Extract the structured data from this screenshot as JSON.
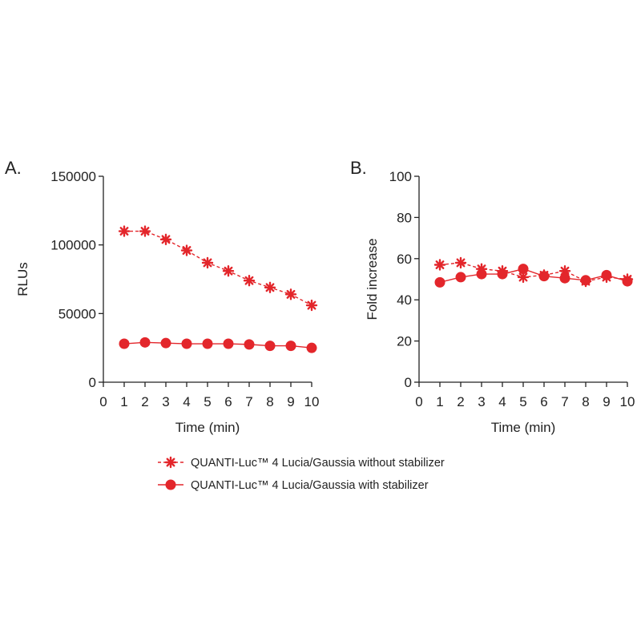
{
  "colors": {
    "series": "#e3262b",
    "axis": "#222222"
  },
  "legend": [
    {
      "label": "QUANTI-Luc™ 4 Lucia/Gaussia without stabilizer",
      "marker": "asterisk",
      "dash": true
    },
    {
      "label": "QUANTI-Luc™ 4 Lucia/Gaussia with stabilizer",
      "marker": "circle",
      "dash": false
    }
  ],
  "chart_data": [
    {
      "type": "line",
      "panel": "A.",
      "xlabel": "Time (min)",
      "ylabel": "RLUs",
      "xlim": [
        0,
        10
      ],
      "ylim": [
        0,
        150000
      ],
      "xticks": [
        0,
        1,
        2,
        3,
        4,
        5,
        6,
        7,
        8,
        9,
        10
      ],
      "yticks": [
        0,
        50000,
        100000,
        150000
      ],
      "x": [
        1,
        2,
        3,
        4,
        5,
        6,
        7,
        8,
        9,
        10
      ],
      "series": [
        {
          "name": "QUANTI-Luc™ 4 Lucia/Gaussia without stabilizer",
          "values": [
            110000,
            110000,
            104000,
            96000,
            87000,
            81000,
            74000,
            69000,
            64000,
            56000
          ]
        },
        {
          "name": "QUANTI-Luc™ 4 Lucia/Gaussia with stabilizer",
          "values": [
            28000,
            29000,
            28500,
            28000,
            28000,
            28000,
            27500,
            26500,
            26500,
            25000
          ]
        }
      ]
    },
    {
      "type": "line",
      "panel": "B.",
      "xlabel": "Time (min)",
      "ylabel": "Fold increase",
      "xlim": [
        0,
        10
      ],
      "ylim": [
        0,
        100
      ],
      "xticks": [
        0,
        1,
        2,
        3,
        4,
        5,
        6,
        7,
        8,
        9,
        10
      ],
      "yticks": [
        0,
        20,
        40,
        60,
        80,
        100
      ],
      "x": [
        1,
        2,
        3,
        4,
        5,
        6,
        7,
        8,
        9,
        10
      ],
      "series": [
        {
          "name": "QUANTI-Luc™ 4 Lucia/Gaussia without stabilizer",
          "values": [
            57,
            58,
            55,
            54,
            51,
            52,
            54,
            49,
            51,
            50
          ]
        },
        {
          "name": "QUANTI-Luc™ 4 Lucia/Gaussia with stabilizer",
          "values": [
            48.5,
            51,
            52.5,
            52.5,
            55,
            51.5,
            50.5,
            49.5,
            52,
            49
          ]
        }
      ]
    }
  ]
}
